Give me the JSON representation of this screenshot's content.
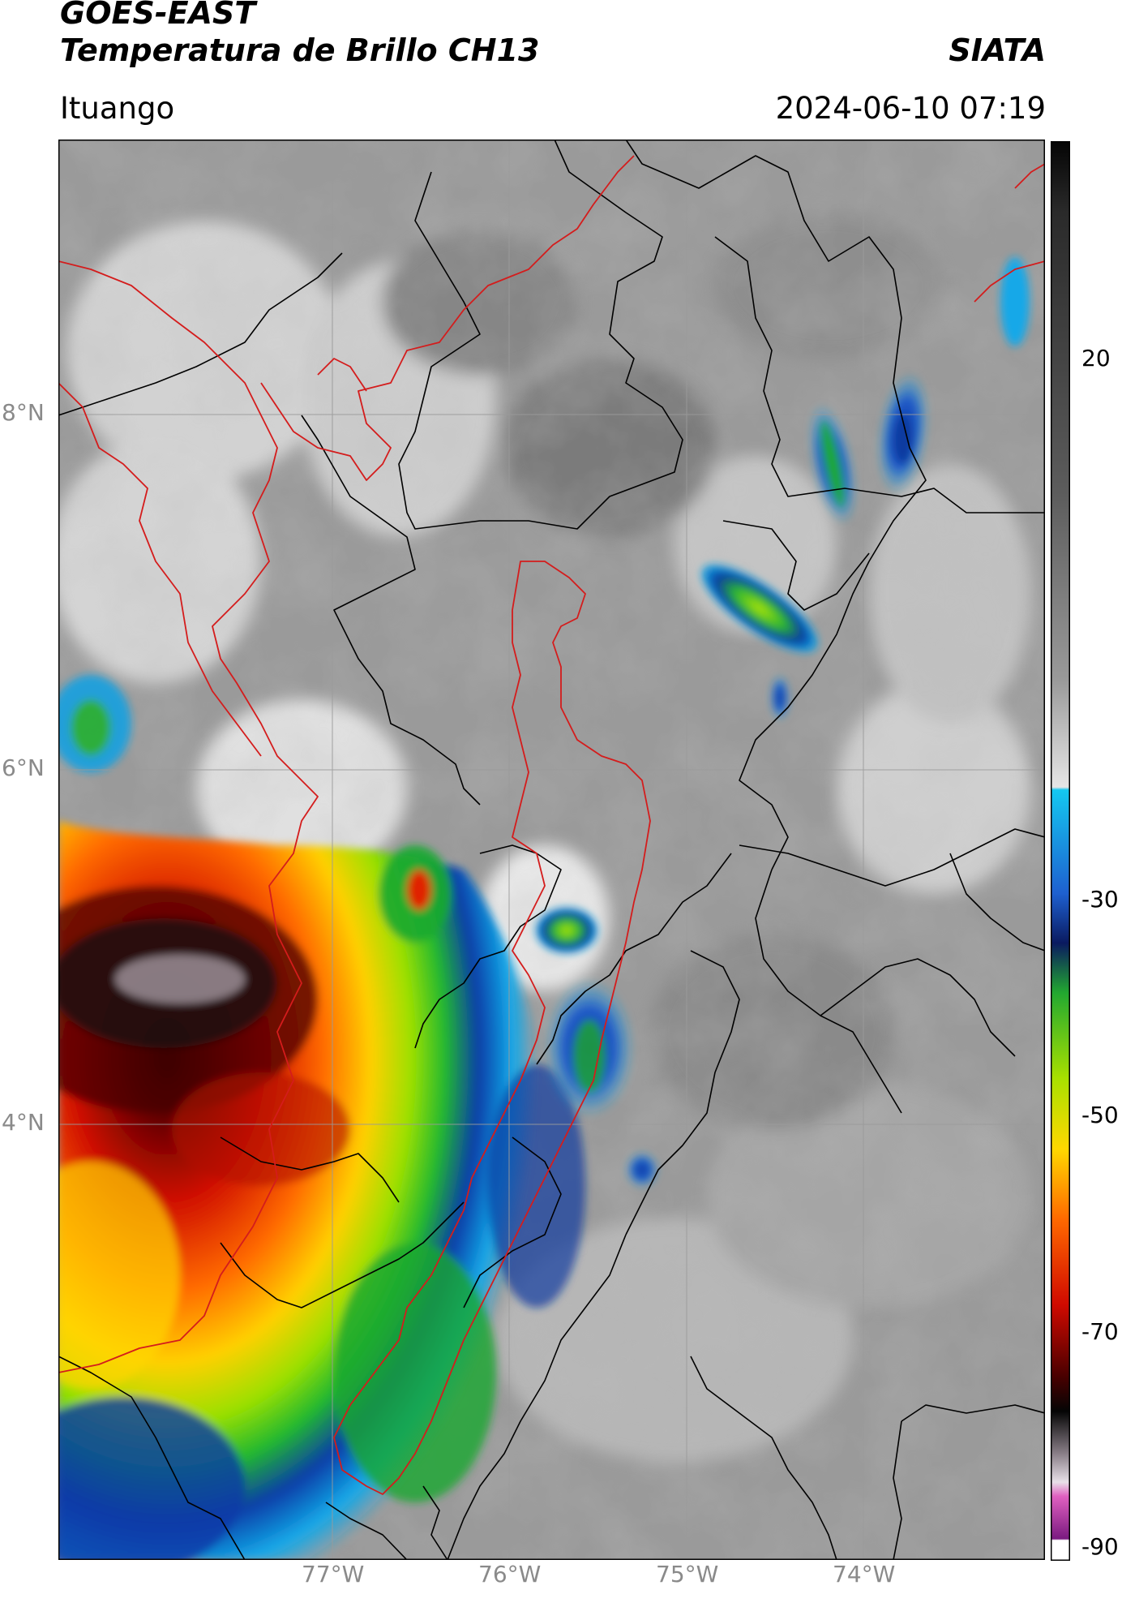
{
  "header": {
    "satellite": "GOES-EAST",
    "product": "Temperatura de Brillo CH13",
    "org": "SIATA",
    "location": "Ituango",
    "datetime": "2024-06-10 07:19"
  },
  "map": {
    "lat_labels": [
      "8°N",
      "6°N",
      "4°N"
    ],
    "lon_labels": [
      "77°W",
      "76°W",
      "75°W",
      "74°W"
    ]
  },
  "colorbar": {
    "ticks": [
      "20",
      "-30",
      "-50",
      "-70",
      "-90"
    ],
    "range": [
      -92,
      48
    ],
    "units_shown": false
  },
  "colors": {
    "border_country": "#d41c1c",
    "border_dept": "#000000",
    "grid": "#9a9a9a"
  }
}
